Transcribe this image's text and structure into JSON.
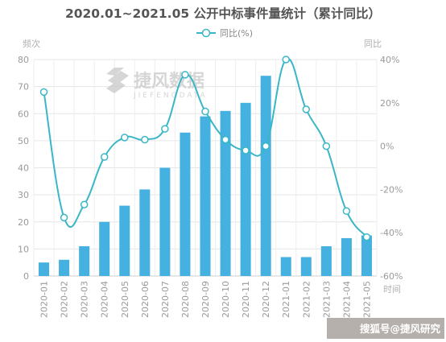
{
  "chart_data": {
    "type": "bar",
    "title": "2020.01~2021.05 公开中标事件量统计（累计同比）",
    "y_left_label": "频次",
    "y_right_label": "同比",
    "x_label": "时间",
    "categories": [
      "2020-01",
      "2020-02",
      "2020-03",
      "2020-04",
      "2020-05",
      "2020-06",
      "2020-07",
      "2020-08",
      "2020-09",
      "2020-10",
      "2020-11",
      "2020-12",
      "2021-01",
      "2021-02",
      "2021-03",
      "2021-04",
      "2021-05"
    ],
    "series": [
      {
        "type": "bar",
        "values": [
          5,
          6,
          11,
          20,
          26,
          32,
          40,
          53,
          59,
          61,
          64,
          74,
          7,
          7,
          11,
          14,
          15
        ],
        "color": "#45b1e0"
      },
      {
        "type": "line",
        "name": "同比(%)",
        "axis": "right",
        "values": [
          25,
          -33,
          -27,
          -5,
          4,
          3,
          8,
          33,
          16,
          3,
          -2,
          0,
          40,
          17,
          0,
          -30,
          -42
        ],
        "color": "#3ab7c6"
      }
    ],
    "y_left_ticks": [
      "0",
      "10",
      "20",
      "30",
      "40",
      "50",
      "60",
      "70",
      "80"
    ],
    "y_left_range": [
      0,
      80
    ],
    "y_right_ticks": [
      "-60%",
      "-40%",
      "-20%",
      "0%",
      "20%",
      "40%"
    ],
    "y_right_range": [
      -60,
      40
    ],
    "grid": true,
    "legend_position": "top-center"
  },
  "watermark": {
    "text": "捷风数据",
    "subtext": "JIEFENGDATA"
  },
  "footer": {
    "text": "搜狐号@捷风研究"
  }
}
